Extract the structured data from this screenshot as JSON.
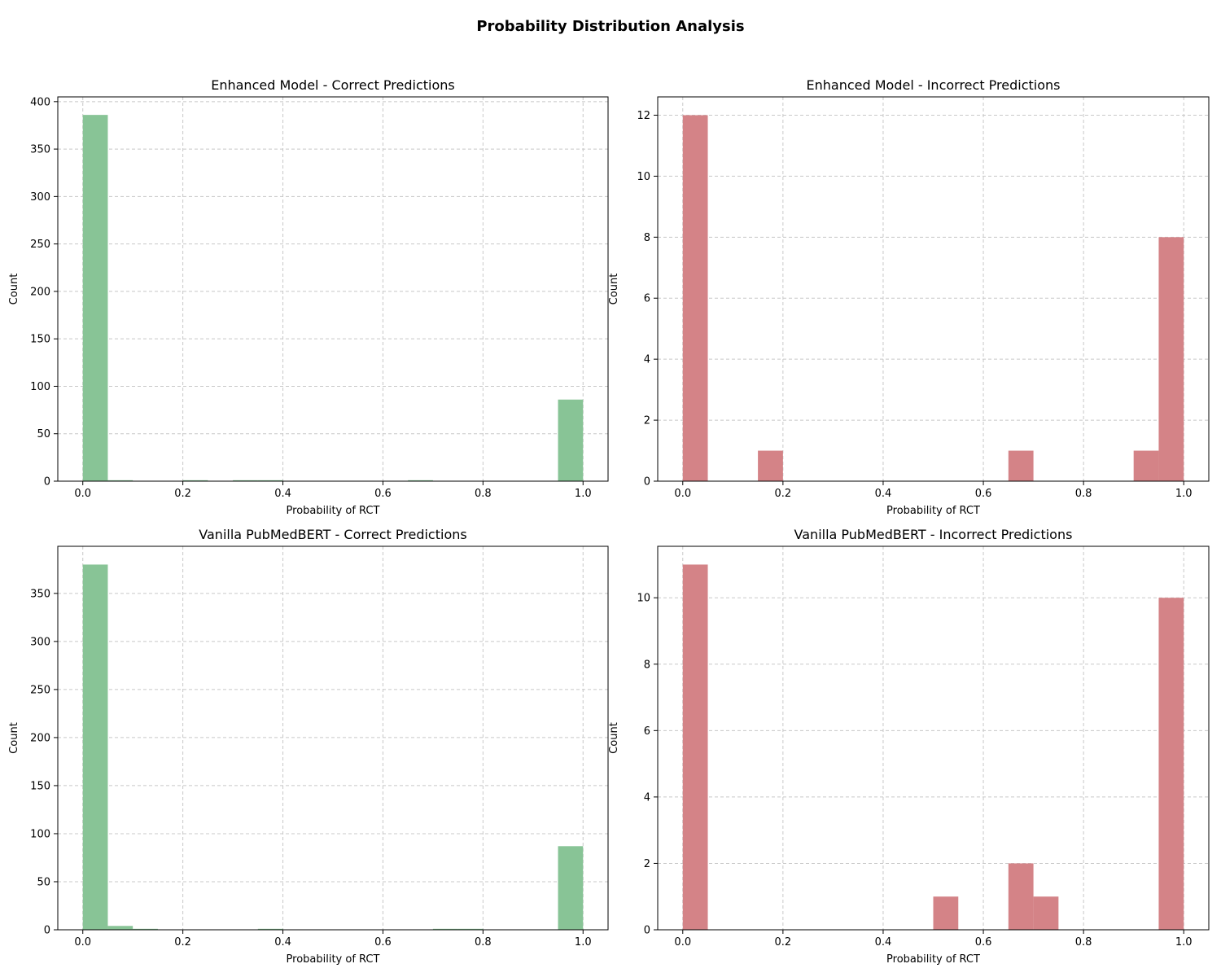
{
  "figure": {
    "title": "Probability Distribution Analysis"
  },
  "chart_data": [
    {
      "type": "bar",
      "title": "Enhanced Model - Correct Predictions",
      "xlabel": "Probability of RCT",
      "ylabel": "Count",
      "xlim": [
        -0.05,
        1.05
      ],
      "ylim": [
        0,
        405
      ],
      "xticks": [
        0.0,
        0.2,
        0.4,
        0.6,
        0.8,
        1.0
      ],
      "yticks": [
        0,
        50,
        100,
        150,
        200,
        250,
        300,
        350,
        400
      ],
      "bin_edges": [
        0.0,
        0.05,
        0.1,
        0.15,
        0.2,
        0.25,
        0.3,
        0.35,
        0.4,
        0.45,
        0.5,
        0.55,
        0.6,
        0.65,
        0.7,
        0.75,
        0.8,
        0.85,
        0.9,
        0.95,
        1.0
      ],
      "values": [
        386,
        1,
        0,
        0,
        1,
        0,
        1,
        1,
        0,
        0,
        0,
        0,
        0,
        1,
        0,
        0,
        0,
        0,
        0,
        86
      ],
      "color": "#88c496",
      "grid": true
    },
    {
      "type": "bar",
      "title": "Enhanced Model - Incorrect Predictions",
      "xlabel": "Probability of RCT",
      "ylabel": "Count",
      "xlim": [
        -0.05,
        1.05
      ],
      "ylim": [
        0,
        12.6
      ],
      "xticks": [
        0.0,
        0.2,
        0.4,
        0.6,
        0.8,
        1.0
      ],
      "yticks": [
        0,
        2,
        4,
        6,
        8,
        10,
        12
      ],
      "bin_edges": [
        0.0,
        0.05,
        0.1,
        0.15,
        0.2,
        0.25,
        0.3,
        0.35,
        0.4,
        0.45,
        0.5,
        0.55,
        0.6,
        0.65,
        0.7,
        0.75,
        0.8,
        0.85,
        0.9,
        0.95,
        1.0
      ],
      "values": [
        12,
        0,
        0,
        1,
        0,
        0,
        0,
        0,
        0,
        0,
        0,
        0,
        0,
        1,
        0,
        0,
        0,
        0,
        1,
        8
      ],
      "color": "#d48387",
      "grid": true
    },
    {
      "type": "bar",
      "title": "Vanilla PubMedBERT - Correct Predictions",
      "xlabel": "Probability of RCT",
      "ylabel": "Count",
      "xlim": [
        -0.05,
        1.05
      ],
      "ylim": [
        0,
        399
      ],
      "xticks": [
        0.0,
        0.2,
        0.4,
        0.6,
        0.8,
        1.0
      ],
      "yticks": [
        0,
        50,
        100,
        150,
        200,
        250,
        300,
        350
      ],
      "bin_edges": [
        0.0,
        0.05,
        0.1,
        0.15,
        0.2,
        0.25,
        0.3,
        0.35,
        0.4,
        0.45,
        0.5,
        0.55,
        0.6,
        0.65,
        0.7,
        0.75,
        0.8,
        0.85,
        0.9,
        0.95,
        1.0
      ],
      "values": [
        380,
        4,
        1,
        0,
        0,
        0,
        0,
        1,
        0,
        0,
        0,
        0,
        0,
        0,
        1,
        1,
        0,
        0,
        0,
        87
      ],
      "color": "#88c496",
      "grid": true
    },
    {
      "type": "bar",
      "title": "Vanilla PubMedBERT - Incorrect Predictions",
      "xlabel": "Probability of RCT",
      "ylabel": "Count",
      "xlim": [
        -0.05,
        1.05
      ],
      "ylim": [
        0,
        11.55
      ],
      "xticks": [
        0.0,
        0.2,
        0.4,
        0.6,
        0.8,
        1.0
      ],
      "yticks": [
        0,
        2,
        4,
        6,
        8,
        10
      ],
      "bin_edges": [
        0.0,
        0.05,
        0.1,
        0.15,
        0.2,
        0.25,
        0.3,
        0.35,
        0.4,
        0.45,
        0.5,
        0.55,
        0.6,
        0.65,
        0.7,
        0.75,
        0.8,
        0.85,
        0.9,
        0.95,
        1.0
      ],
      "values": [
        11,
        0,
        0,
        0,
        0,
        0,
        0,
        0,
        0,
        0,
        1,
        0,
        0,
        2,
        1,
        0,
        0,
        0,
        0,
        10
      ],
      "color": "#d48387",
      "grid": true
    }
  ]
}
